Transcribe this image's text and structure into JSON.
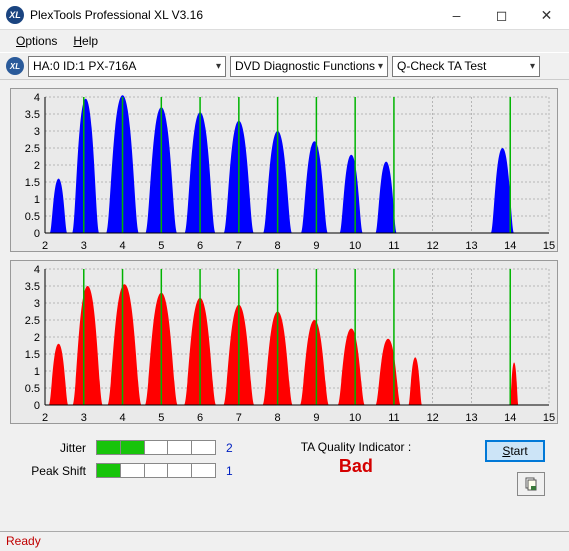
{
  "window": {
    "title": "PlexTools Professional XL V3.16",
    "icon_text": "XL"
  },
  "menu": {
    "options": "Options",
    "help": "Help"
  },
  "toolbar": {
    "drive": "HA:0 ID:1  PX-716A",
    "category": "DVD Diagnostic Functions",
    "test": "Q-Check TA Test"
  },
  "chart_top": {
    "color": "#0000ff",
    "bg": "#eaeaea",
    "grid": "#808080",
    "guide": "#00b400",
    "font_size": 11,
    "x_min": 2,
    "x_max": 15,
    "y_min": 0,
    "y_max": 4,
    "y_ticks": [
      0,
      0.5,
      1,
      1.5,
      2,
      2.5,
      3,
      3.5,
      4
    ],
    "x_ticks": [
      2,
      3,
      4,
      5,
      6,
      7,
      8,
      9,
      10,
      11,
      12,
      13,
      14,
      15
    ],
    "guides": [
      3,
      4,
      5,
      6,
      7,
      8,
      9,
      10,
      11,
      14
    ],
    "peaks": [
      {
        "c": 2.35,
        "w": 0.45,
        "h": 1.6
      },
      {
        "c": 3.05,
        "w": 0.7,
        "h": 3.95
      },
      {
        "c": 4.0,
        "w": 0.85,
        "h": 4.05
      },
      {
        "c": 5.0,
        "w": 0.82,
        "h": 3.7
      },
      {
        "c": 6.0,
        "w": 0.8,
        "h": 3.55
      },
      {
        "c": 7.0,
        "w": 0.78,
        "h": 3.3
      },
      {
        "c": 8.0,
        "w": 0.75,
        "h": 3.0
      },
      {
        "c": 8.95,
        "w": 0.7,
        "h": 2.7
      },
      {
        "c": 9.9,
        "w": 0.6,
        "h": 2.3
      },
      {
        "c": 10.8,
        "w": 0.55,
        "h": 2.1
      },
      {
        "c": 13.8,
        "w": 0.6,
        "h": 2.5
      }
    ]
  },
  "chart_bottom": {
    "color": "#ff0000",
    "bg": "#eaeaea",
    "grid": "#808080",
    "guide": "#00b400",
    "font_size": 11,
    "x_min": 2,
    "x_max": 15,
    "y_min": 0,
    "y_max": 4,
    "y_ticks": [
      0,
      0.5,
      1,
      1.5,
      2,
      2.5,
      3,
      3.5,
      4
    ],
    "x_ticks": [
      2,
      3,
      4,
      5,
      6,
      7,
      8,
      9,
      10,
      11,
      12,
      13,
      14,
      15
    ],
    "guides": [
      3,
      4,
      5,
      6,
      7,
      8,
      9,
      10,
      11,
      14
    ],
    "peaks": [
      {
        "c": 2.35,
        "w": 0.5,
        "h": 1.8
      },
      {
        "c": 3.1,
        "w": 0.78,
        "h": 3.5
      },
      {
        "c": 4.05,
        "w": 0.88,
        "h": 3.55
      },
      {
        "c": 5.0,
        "w": 0.85,
        "h": 3.3
      },
      {
        "c": 6.0,
        "w": 0.83,
        "h": 3.15
      },
      {
        "c": 7.0,
        "w": 0.8,
        "h": 2.95
      },
      {
        "c": 8.0,
        "w": 0.78,
        "h": 2.75
      },
      {
        "c": 8.95,
        "w": 0.75,
        "h": 2.5
      },
      {
        "c": 9.9,
        "w": 0.7,
        "h": 2.25
      },
      {
        "c": 10.85,
        "w": 0.65,
        "h": 1.95
      },
      {
        "c": 11.55,
        "w": 0.35,
        "h": 1.4
      },
      {
        "c": 14.1,
        "w": 0.22,
        "h": 1.25
      }
    ]
  },
  "metrics": {
    "jitter_label": "Jitter",
    "jitter_filled": 2,
    "jitter_total": 5,
    "jitter_value": "2",
    "peakshift_label": "Peak Shift",
    "peakshift_filled": 1,
    "peakshift_total": 5,
    "peakshift_value": "1"
  },
  "ta": {
    "label": "TA Quality Indicator :",
    "value": "Bad",
    "value_color": "#d40000"
  },
  "buttons": {
    "start": "Start"
  },
  "status": {
    "text": "Ready",
    "color": "#c00000"
  }
}
